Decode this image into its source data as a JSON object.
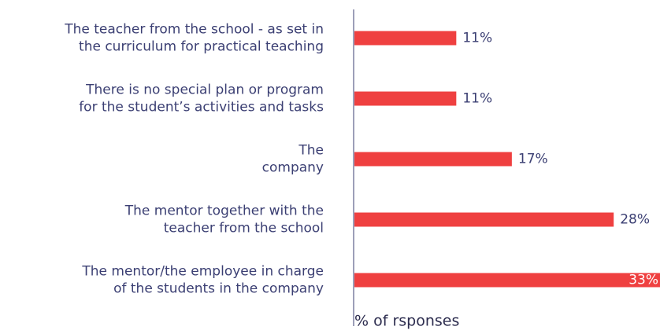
{
  "chart_data": {
    "type": "barh",
    "categories": [
      [
        "The  teacher from the school - as set in",
        "the curriculum for practical teaching"
      ],
      [
        "There is no special plan or program",
        "for the student’s activities and tasks"
      ],
      [
        "The",
        "company"
      ],
      [
        "The mentor together with the",
        "teacher from the school"
      ],
      [
        "The mentor/the employee in charge",
        "of the students in the company"
      ]
    ],
    "values": [
      11,
      11,
      17,
      28,
      33
    ],
    "value_labels": [
      "11%",
      "11%",
      "17%",
      "28%",
      "33%"
    ],
    "color": "#ef4040",
    "xlim": [
      0,
      33
    ],
    "xlabel": "% of rsponses"
  }
}
